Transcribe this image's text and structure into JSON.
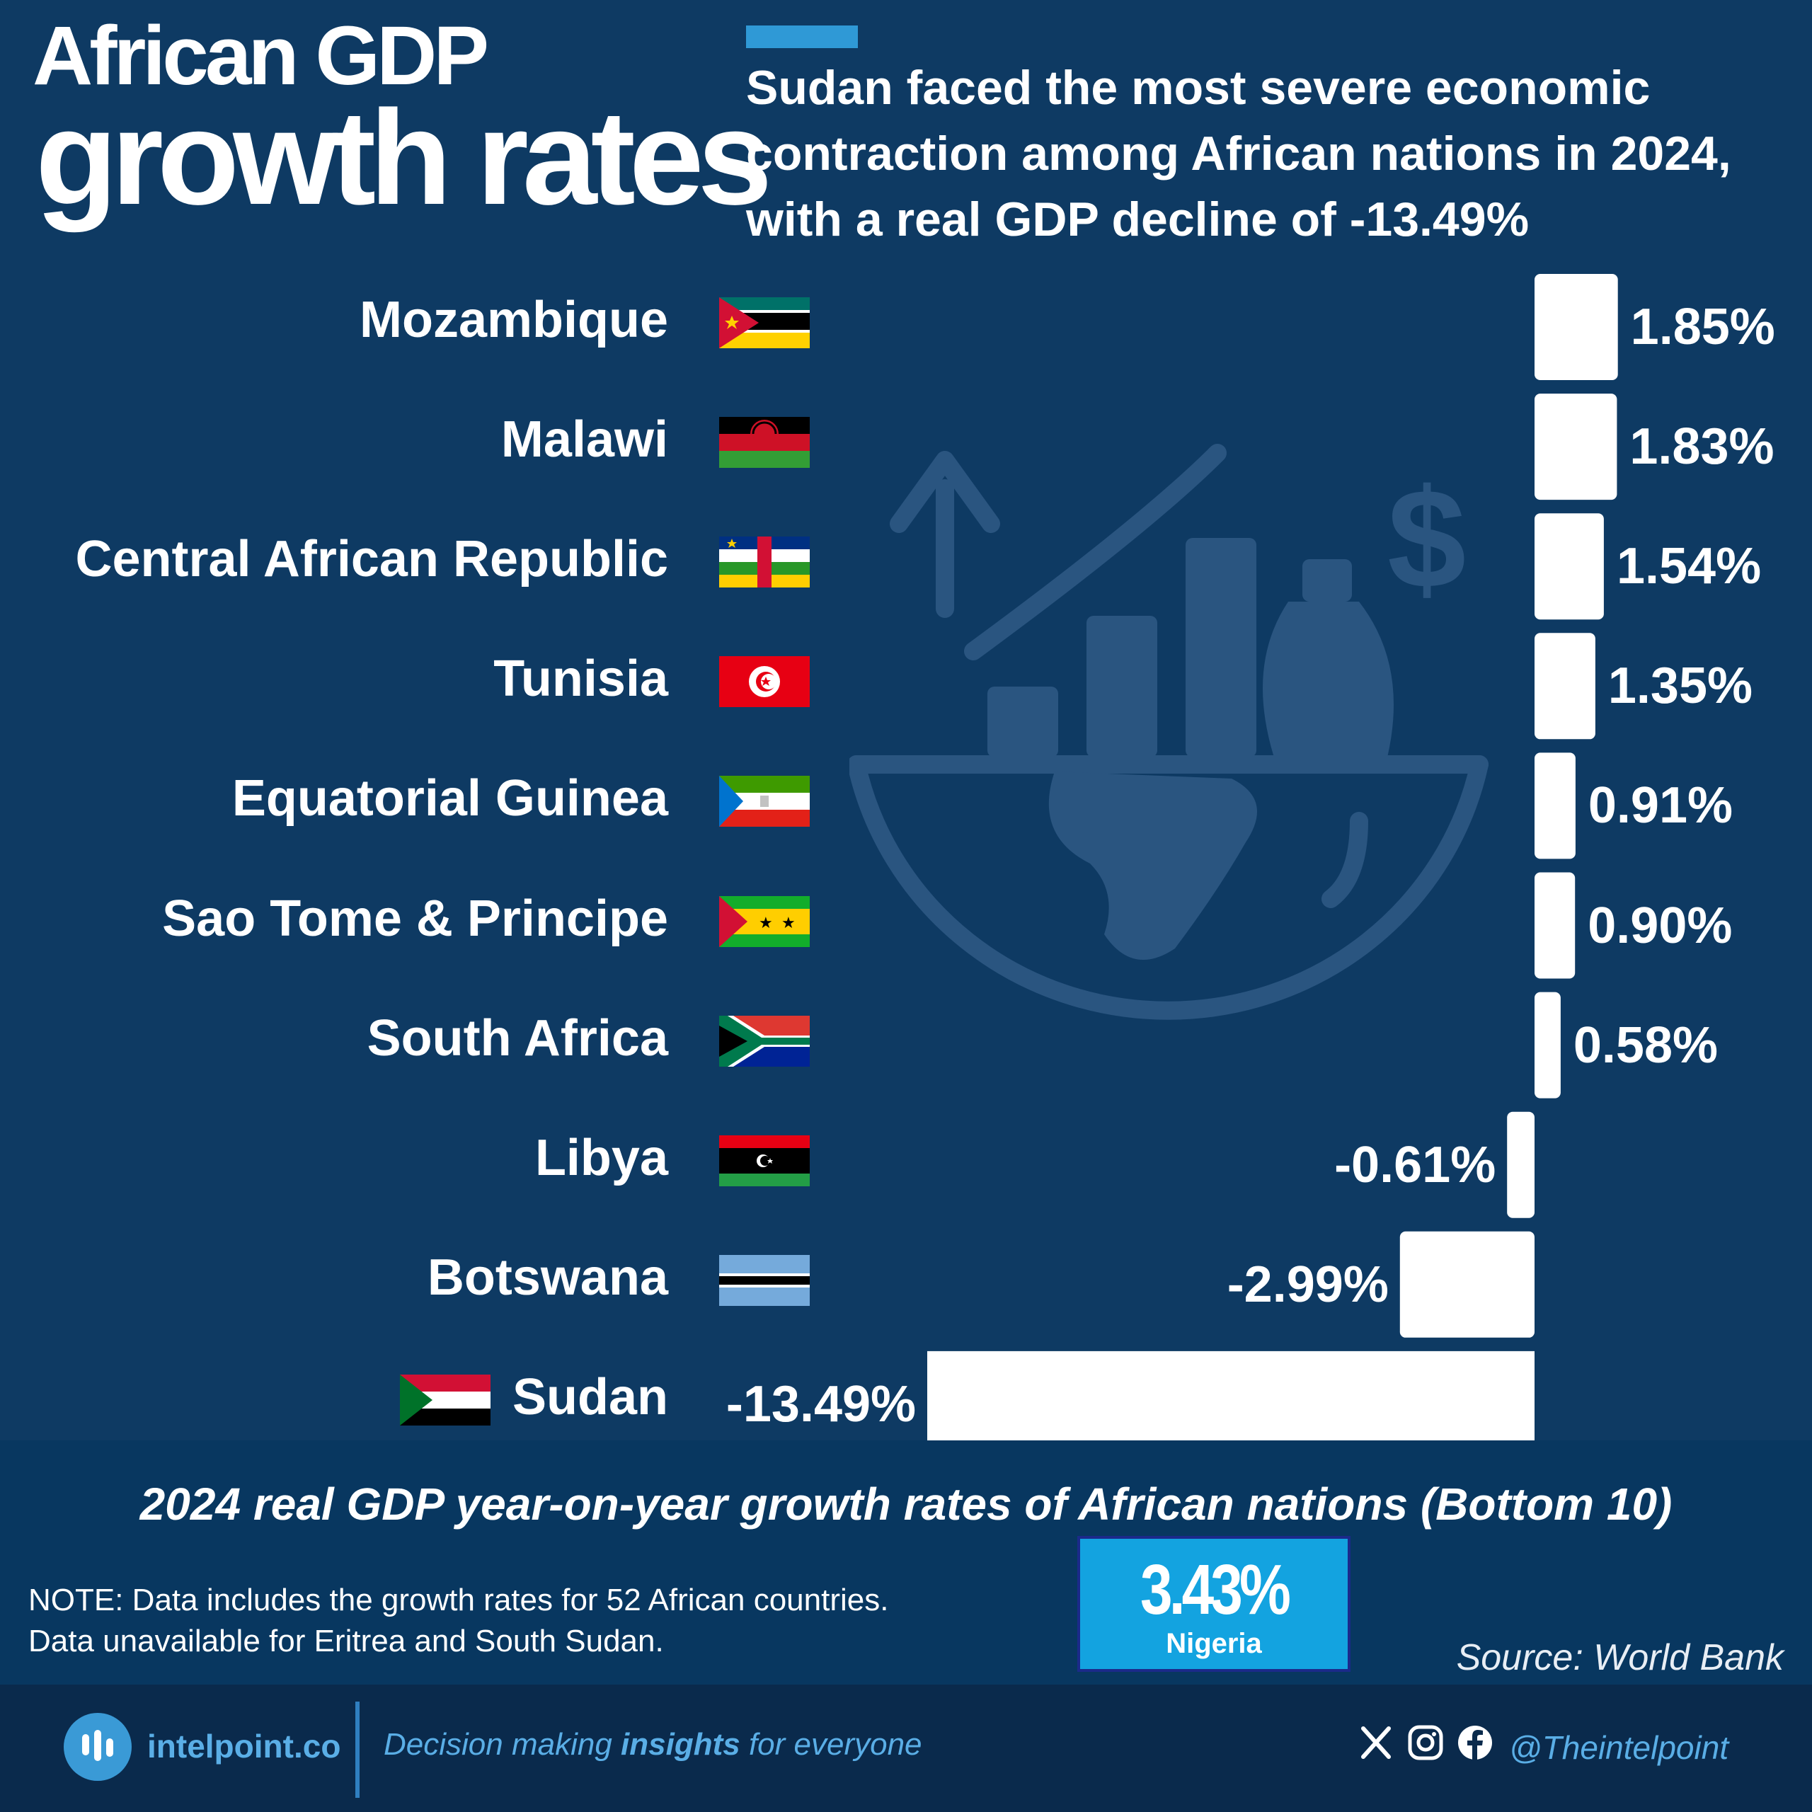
{
  "header": {
    "title_line1": "African GDP",
    "title_line2": "growth rates",
    "subtitle": "Sudan faced the most severe economic contraction among African nations in 2024, with a real GDP decline of -13.49%"
  },
  "chart_data": {
    "type": "bar",
    "orientation": "horizontal",
    "title": "2024 real GDP year-on-year growth rates of African nations (Bottom 10)",
    "categories": [
      "Mozambique",
      "Malawi",
      "Central African Republic",
      "Tunisia",
      "Equatorial Guinea",
      "Sao Tome & Principe",
      "South Africa",
      "Libya",
      "Botswana",
      "Sudan"
    ],
    "values": [
      1.85,
      1.83,
      1.54,
      1.35,
      0.91,
      0.9,
      0.58,
      -0.61,
      -2.99,
      -13.49
    ],
    "value_labels": [
      "1.85%",
      "1.83%",
      "1.54%",
      "1.35%",
      "0.91%",
      "0.90%",
      "0.58%",
      "-0.61%",
      "-2.99%",
      "-13.49%"
    ],
    "bar_color": "#ffffff",
    "grid": false
  },
  "colors": {
    "background": "#0e3a63",
    "accent": "#2f99d6",
    "highlight_box": "#13a3e0"
  },
  "flags": [
    "mozambique-flag-icon",
    "malawi-flag-icon",
    "central-african-republic-flag-icon",
    "tunisia-flag-icon",
    "equatorial-guinea-flag-icon",
    "sao-tome-and-principe-flag-icon",
    "south-africa-flag-icon",
    "libya-flag-icon",
    "botswana-flag-icon",
    "sudan-flag-icon"
  ],
  "note": {
    "line1": "NOTE: Data includes the growth rates for 52 African countries.",
    "line2": "Data unavailable for Eritrea and South Sudan."
  },
  "highlight": {
    "value": "3.43%",
    "country": "Nigeria"
  },
  "source": "Source: World Bank",
  "footer": {
    "site": "intelpoint.co",
    "tagline_before": "Decision making ",
    "tagline_bold": "insights",
    "tagline_after": " for everyone",
    "handle": "@Theintelpoint"
  }
}
